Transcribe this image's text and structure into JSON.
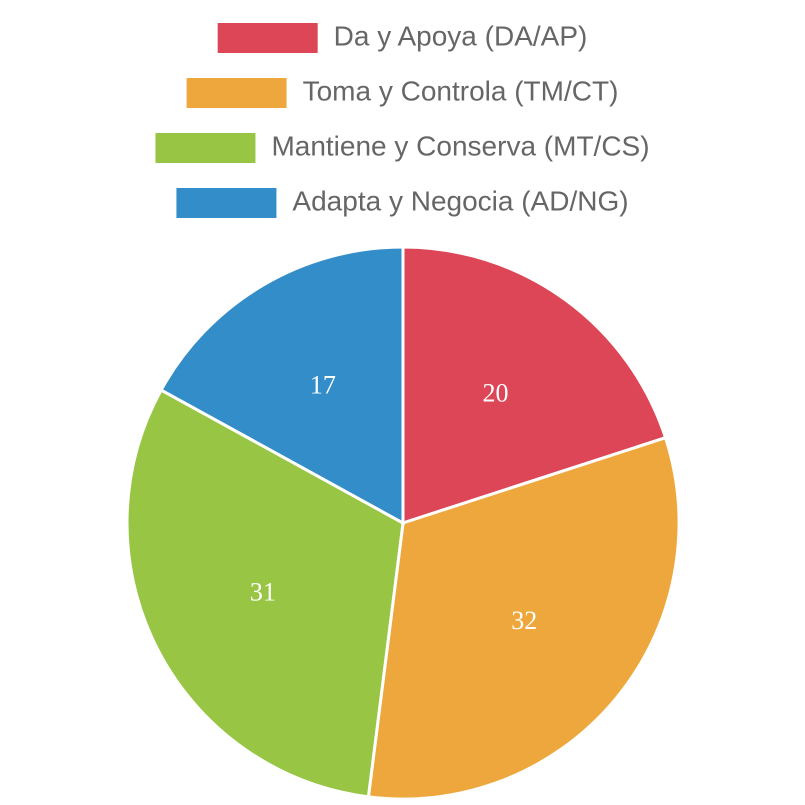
{
  "chart_data": {
    "type": "pie",
    "categories": [
      "Da y Apoya (DA/AP)",
      "Toma y Controla (TM/CT)",
      "Mantiene y Conserva (MT/CS)",
      "Adapta y Negocia (AD/NG)"
    ],
    "values": [
      20,
      32,
      31,
      17
    ],
    "colors": [
      "#dc4656",
      "#eda73c",
      "#98c544",
      "#338dc8"
    ],
    "legend": "top"
  }
}
